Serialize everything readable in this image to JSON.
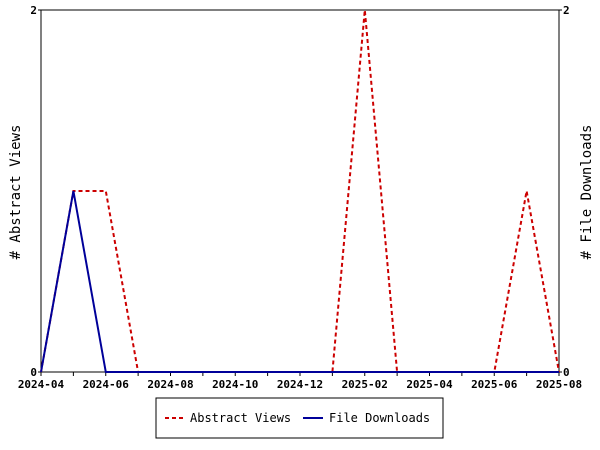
{
  "chart_data": {
    "type": "line",
    "title": "",
    "x": [
      "2024-04",
      "2024-05",
      "2024-06",
      "2024-07",
      "2024-08",
      "2024-09",
      "2024-10",
      "2024-11",
      "2024-12",
      "2025-01",
      "2025-02",
      "2025-03",
      "2025-04",
      "2025-05",
      "2025-06",
      "2025-07",
      "2025-08"
    ],
    "x_tick_labels": [
      "2024-04",
      "2024-06",
      "2024-08",
      "2024-10",
      "2024-12",
      "2025-02",
      "2025-04",
      "2025-06",
      "2025-08"
    ],
    "ylabel_left": "# Abstract Views",
    "ylabel_right": "# File Downloads",
    "ylim_left": [
      0,
      2
    ],
    "ylim_right": [
      0,
      2
    ],
    "y_ticks_left": [
      "0",
      "2"
    ],
    "y_ticks_right": [
      "0",
      "2"
    ],
    "grid": false,
    "legend_position": "bottom",
    "series": [
      {
        "name": "Abstract Views",
        "axis": "left",
        "color": "#cc0000",
        "style": "dashed",
        "values": [
          0,
          1,
          1,
          0,
          0,
          0,
          0,
          0,
          0,
          0,
          2,
          0,
          0,
          0,
          0,
          1,
          0
        ]
      },
      {
        "name": "File Downloads",
        "axis": "right",
        "color": "#000099",
        "style": "solid",
        "values": [
          0,
          1,
          0,
          0,
          0,
          0,
          0,
          0,
          0,
          0,
          0,
          0,
          0,
          0,
          0,
          0,
          0
        ]
      }
    ]
  }
}
